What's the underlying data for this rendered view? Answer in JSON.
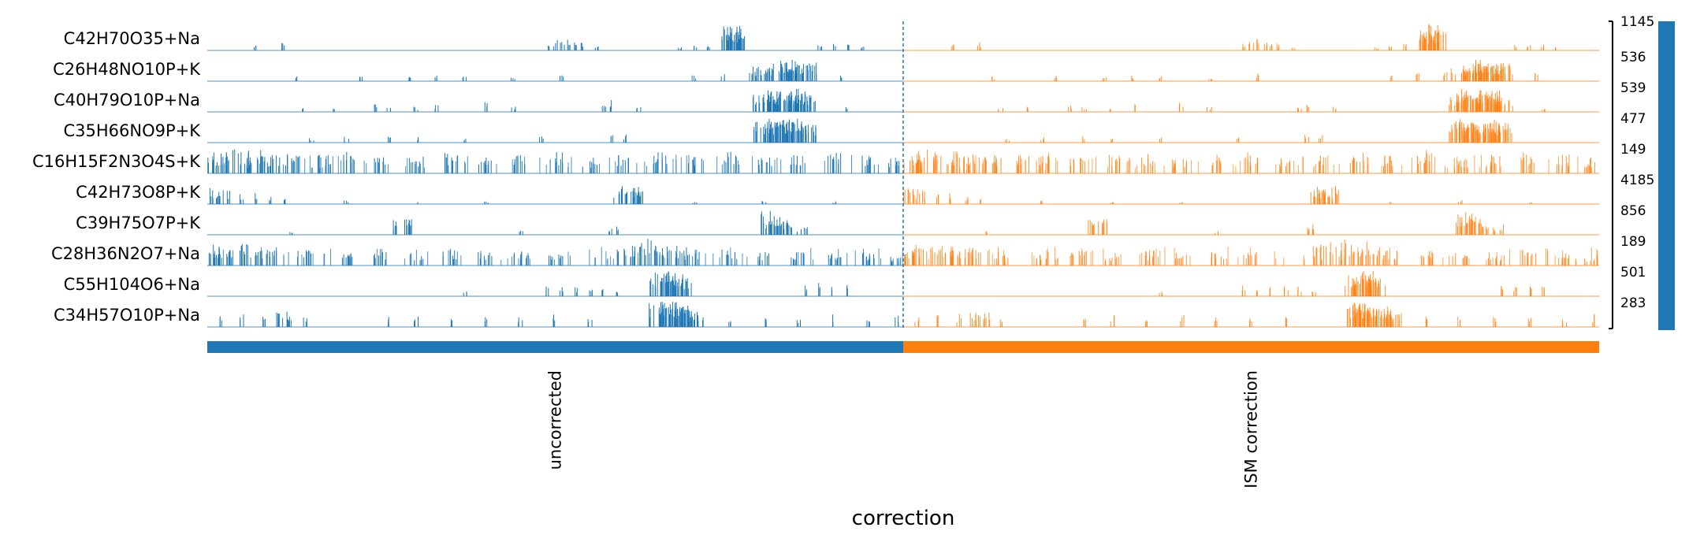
{
  "chart_data": {
    "type": "track_plot",
    "xlabel": "correction",
    "groups": [
      {
        "name": "uncorrected",
        "color": "#1f77b4"
      },
      {
        "name": "ISM correction",
        "color": "#ff7f0e"
      }
    ],
    "rows": [
      {
        "label": "C42H70O35+Na",
        "max": 1145,
        "peaks": [
          [
            0.07,
            0.25
          ],
          [
            0.11,
            0.3
          ],
          [
            0.49,
            0.35
          ],
          [
            0.5,
            0.4
          ],
          [
            0.51,
            0.45
          ],
          [
            0.52,
            0.4
          ],
          [
            0.53,
            0.35
          ],
          [
            0.54,
            0.3
          ],
          [
            0.56,
            0.2
          ],
          [
            0.68,
            0.15
          ],
          [
            0.7,
            0.2
          ],
          [
            0.72,
            0.25
          ],
          [
            0.75,
            0.45
          ],
          [
            0.755,
            0.9
          ],
          [
            0.76,
            1.0
          ],
          [
            0.765,
            0.7
          ],
          [
            0.88,
            0.2
          ],
          [
            0.9,
            0.25
          ],
          [
            0.92,
            0.22
          ],
          [
            0.94,
            0.2
          ]
        ]
      },
      {
        "label": "C26H48NO10P+K",
        "max": 536,
        "peaks": [
          [
            0.13,
            0.2
          ],
          [
            0.22,
            0.2
          ],
          [
            0.29,
            0.25
          ],
          [
            0.33,
            0.22
          ],
          [
            0.37,
            0.2
          ],
          [
            0.44,
            0.2
          ],
          [
            0.51,
            0.3
          ],
          [
            0.7,
            0.25
          ],
          [
            0.74,
            0.3
          ],
          [
            0.78,
            0.35
          ],
          [
            0.8,
            0.55
          ],
          [
            0.82,
            0.65
          ],
          [
            0.83,
            0.8
          ],
          [
            0.84,
            0.7
          ],
          [
            0.85,
            0.6
          ],
          [
            0.86,
            0.7
          ],
          [
            0.91,
            0.3
          ]
        ]
      },
      {
        "label": "C40H79O10P+Na",
        "max": 539,
        "peaks": [
          [
            0.14,
            0.2
          ],
          [
            0.18,
            0.25
          ],
          [
            0.24,
            0.3
          ],
          [
            0.26,
            0.2
          ],
          [
            0.3,
            0.2
          ],
          [
            0.33,
            0.3
          ],
          [
            0.4,
            0.4
          ],
          [
            0.44,
            0.2
          ],
          [
            0.57,
            0.3
          ],
          [
            0.58,
            0.5
          ],
          [
            0.62,
            0.2
          ],
          [
            0.8,
            0.7
          ],
          [
            0.81,
            0.9
          ],
          [
            0.82,
            0.8
          ],
          [
            0.83,
            0.7
          ],
          [
            0.84,
            0.9
          ],
          [
            0.85,
            0.8
          ],
          [
            0.86,
            0.6
          ],
          [
            0.92,
            0.2
          ]
        ]
      },
      {
        "label": "C35H66NO9P+K",
        "max": 477,
        "peaks": [
          [
            0.15,
            0.2
          ],
          [
            0.2,
            0.25
          ],
          [
            0.26,
            0.3
          ],
          [
            0.3,
            0.2
          ],
          [
            0.37,
            0.2
          ],
          [
            0.48,
            0.25
          ],
          [
            0.58,
            0.3
          ],
          [
            0.6,
            0.35
          ],
          [
            0.8,
            0.9
          ],
          [
            0.81,
            0.8
          ],
          [
            0.82,
            0.9
          ],
          [
            0.83,
            0.8
          ],
          [
            0.84,
            0.9
          ],
          [
            0.85,
            0.8
          ],
          [
            0.86,
            0.7
          ]
        ]
      },
      {
        "label": "C16H15F2N3O4S+K",
        "max": 149,
        "dense": true,
        "peaks": [
          [
            0.01,
            0.7
          ],
          [
            0.02,
            0.8
          ],
          [
            0.03,
            0.9
          ],
          [
            0.05,
            0.8
          ],
          [
            0.07,
            0.9
          ],
          [
            0.09,
            0.7
          ],
          [
            0.11,
            0.8
          ],
          [
            0.13,
            0.7
          ],
          [
            0.17,
            0.7
          ],
          [
            0.2,
            0.8
          ],
          [
            0.25,
            0.6
          ],
          [
            0.3,
            0.7
          ],
          [
            0.35,
            0.8
          ],
          [
            0.4,
            0.6
          ],
          [
            0.45,
            0.7
          ],
          [
            0.5,
            0.8
          ],
          [
            0.55,
            0.6
          ],
          [
            0.6,
            0.7
          ],
          [
            0.65,
            0.8
          ],
          [
            0.7,
            0.7
          ],
          [
            0.75,
            0.9
          ],
          [
            0.8,
            0.6
          ],
          [
            0.85,
            0.7
          ],
          [
            0.9,
            0.8
          ],
          [
            0.95,
            0.7
          ],
          [
            0.99,
            0.6
          ]
        ]
      },
      {
        "label": "C42H73O8P+K",
        "max": 4185,
        "peaks": [
          [
            0.01,
            0.6
          ],
          [
            0.03,
            0.5
          ],
          [
            0.05,
            0.4
          ],
          [
            0.07,
            0.5
          ],
          [
            0.09,
            0.3
          ],
          [
            0.11,
            0.2
          ],
          [
            0.2,
            0.15
          ],
          [
            0.3,
            0.1
          ],
          [
            0.4,
            0.1
          ],
          [
            0.6,
            0.6
          ],
          [
            0.61,
            0.7
          ],
          [
            0.62,
            0.5
          ],
          [
            0.7,
            0.1
          ],
          [
            0.8,
            0.15
          ],
          [
            0.9,
            0.1
          ]
        ]
      },
      {
        "label": "C39H75O7P+K",
        "max": 856,
        "peaks": [
          [
            0.12,
            0.15
          ],
          [
            0.28,
            0.6
          ],
          [
            0.45,
            0.2
          ],
          [
            0.58,
            0.3
          ],
          [
            0.59,
            0.4
          ],
          [
            0.8,
            0.5
          ],
          [
            0.81,
            0.9
          ],
          [
            0.82,
            0.6
          ],
          [
            0.83,
            0.5
          ],
          [
            0.84,
            0.4
          ],
          [
            0.85,
            0.3
          ],
          [
            0.86,
            0.4
          ]
        ]
      },
      {
        "label": "C28H36N2O7+Na",
        "max": 189,
        "dense": true,
        "peaks": [
          [
            0.01,
            0.7
          ],
          [
            0.02,
            0.8
          ],
          [
            0.04,
            0.7
          ],
          [
            0.06,
            0.8
          ],
          [
            0.08,
            0.6
          ],
          [
            0.1,
            0.7
          ],
          [
            0.14,
            0.6
          ],
          [
            0.2,
            0.5
          ],
          [
            0.25,
            0.6
          ],
          [
            0.3,
            0.5
          ],
          [
            0.35,
            0.6
          ],
          [
            0.4,
            0.5
          ],
          [
            0.45,
            0.6
          ],
          [
            0.5,
            0.5
          ],
          [
            0.6,
            0.8
          ],
          [
            0.62,
            0.9
          ],
          [
            0.64,
            1.0
          ],
          [
            0.66,
            0.9
          ],
          [
            0.68,
            0.8
          ],
          [
            0.7,
            0.6
          ],
          [
            0.75,
            0.6
          ],
          [
            0.8,
            0.5
          ],
          [
            0.85,
            0.5
          ],
          [
            0.9,
            0.6
          ],
          [
            0.95,
            0.5
          ],
          [
            0.99,
            0.4
          ]
        ]
      },
      {
        "label": "C55H104O6+Na",
        "max": 501,
        "peaks": [
          [
            0.37,
            0.2
          ],
          [
            0.49,
            0.4
          ],
          [
            0.51,
            0.35
          ],
          [
            0.53,
            0.35
          ],
          [
            0.55,
            0.4
          ],
          [
            0.57,
            0.35
          ],
          [
            0.59,
            0.3
          ],
          [
            0.65,
            0.9
          ],
          [
            0.66,
            1.0
          ],
          [
            0.67,
            0.9
          ],
          [
            0.68,
            0.7
          ],
          [
            0.86,
            0.5
          ],
          [
            0.88,
            0.5
          ],
          [
            0.9,
            0.45
          ],
          [
            0.92,
            0.5
          ]
        ]
      },
      {
        "label": "C34H57O10P+Na",
        "max": 283,
        "peaks": [
          [
            0.02,
            0.4
          ],
          [
            0.05,
            0.5
          ],
          [
            0.08,
            0.5
          ],
          [
            0.11,
            0.6
          ],
          [
            0.14,
            0.4
          ],
          [
            0.26,
            0.4
          ],
          [
            0.3,
            0.5
          ],
          [
            0.35,
            0.4
          ],
          [
            0.4,
            0.5
          ],
          [
            0.45,
            0.4
          ],
          [
            0.5,
            0.5
          ],
          [
            0.55,
            0.4
          ],
          [
            0.65,
            0.9
          ],
          [
            0.66,
            1.0
          ],
          [
            0.67,
            0.9
          ],
          [
            0.68,
            0.8
          ],
          [
            0.69,
            0.7
          ],
          [
            0.7,
            0.6
          ],
          [
            0.75,
            0.4
          ],
          [
            0.8,
            0.4
          ],
          [
            0.85,
            0.4
          ],
          [
            0.9,
            0.5
          ],
          [
            0.95,
            0.4
          ],
          [
            0.99,
            0.5
          ]
        ]
      }
    ]
  }
}
